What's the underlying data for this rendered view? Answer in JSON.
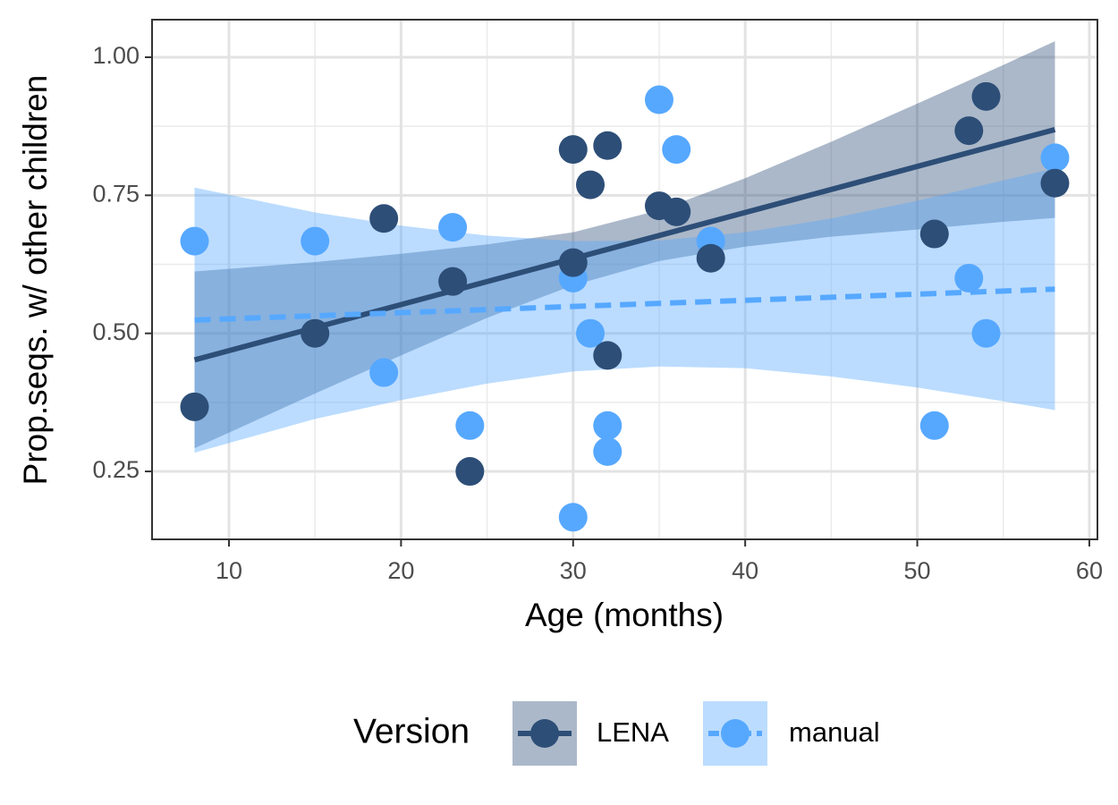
{
  "chart_data": {
    "type": "scatter",
    "x_label": "Age (months)",
    "y_label": "Prop.seqs. w/ other children",
    "legend_title": "Version",
    "legend_position": "bottom",
    "grid": true,
    "xlim": [
      5.53,
      60.47
    ],
    "ylim": [
      0.127,
      1.068
    ],
    "xticks": [
      10,
      20,
      30,
      40,
      50,
      60
    ],
    "xminor": [
      15,
      25,
      35,
      45,
      55
    ],
    "yticks": [
      {
        "value": 0.25,
        "label": "0.25"
      },
      {
        "value": 0.5,
        "label": "0.50"
      },
      {
        "value": 0.75,
        "label": "0.75"
      },
      {
        "value": 1,
        "label": "1.00"
      }
    ],
    "yminor": [
      0.375,
      0.625,
      0.875
    ],
    "series": [
      {
        "name": "LENA",
        "color": "#2d4e77",
        "linetype": "solid",
        "x": [
          8,
          15,
          19,
          23,
          24,
          30,
          30,
          31,
          32,
          32,
          35,
          36,
          38,
          51,
          53,
          54,
          58
        ],
        "values": [
          0.367,
          0.5,
          0.708,
          0.594,
          0.25,
          0.833,
          0.628,
          0.769,
          0.84,
          0.46,
          0.731,
          0.72,
          0.636,
          0.68,
          0.867,
          0.929,
          0.772
        ],
        "fit": {
          "x": [
            8,
            58
          ],
          "values": [
            0.452,
            0.869
          ]
        },
        "band": {
          "x": [
            8,
            15,
            20,
            25,
            30,
            35,
            40,
            45,
            50,
            55,
            58
          ],
          "lower": [
            0.292,
            0.391,
            0.46,
            0.528,
            0.587,
            0.631,
            0.657,
            0.675,
            0.688,
            0.702,
            0.709
          ],
          "upper": [
            0.612,
            0.629,
            0.644,
            0.661,
            0.683,
            0.723,
            0.781,
            0.847,
            0.916,
            0.986,
            1.029
          ]
        }
      },
      {
        "name": "manual",
        "color": "#56a8ff",
        "linetype": "dashed",
        "x": [
          8,
          15,
          19,
          23,
          24,
          30,
          30,
          31,
          32,
          32,
          35,
          36,
          38,
          51,
          53,
          54,
          58
        ],
        "values": [
          0.667,
          0.667,
          0.429,
          0.692,
          0.333,
          0.6,
          0.167,
          0.5,
          0.333,
          0.286,
          0.923,
          0.833,
          0.667,
          0.333,
          0.6,
          0.5,
          0.818
        ],
        "fit": {
          "x": [
            8,
            58
          ],
          "values": [
            0.524,
            0.58
          ]
        },
        "band": {
          "x": [
            8,
            15,
            20,
            25,
            30,
            35,
            40,
            45,
            50,
            55,
            58
          ],
          "lower": [
            0.284,
            0.345,
            0.379,
            0.409,
            0.431,
            0.44,
            0.437,
            0.422,
            0.402,
            0.377,
            0.361
          ],
          "upper": [
            0.764,
            0.719,
            0.695,
            0.677,
            0.667,
            0.668,
            0.683,
            0.708,
            0.74,
            0.777,
            0.799
          ]
        }
      }
    ]
  }
}
